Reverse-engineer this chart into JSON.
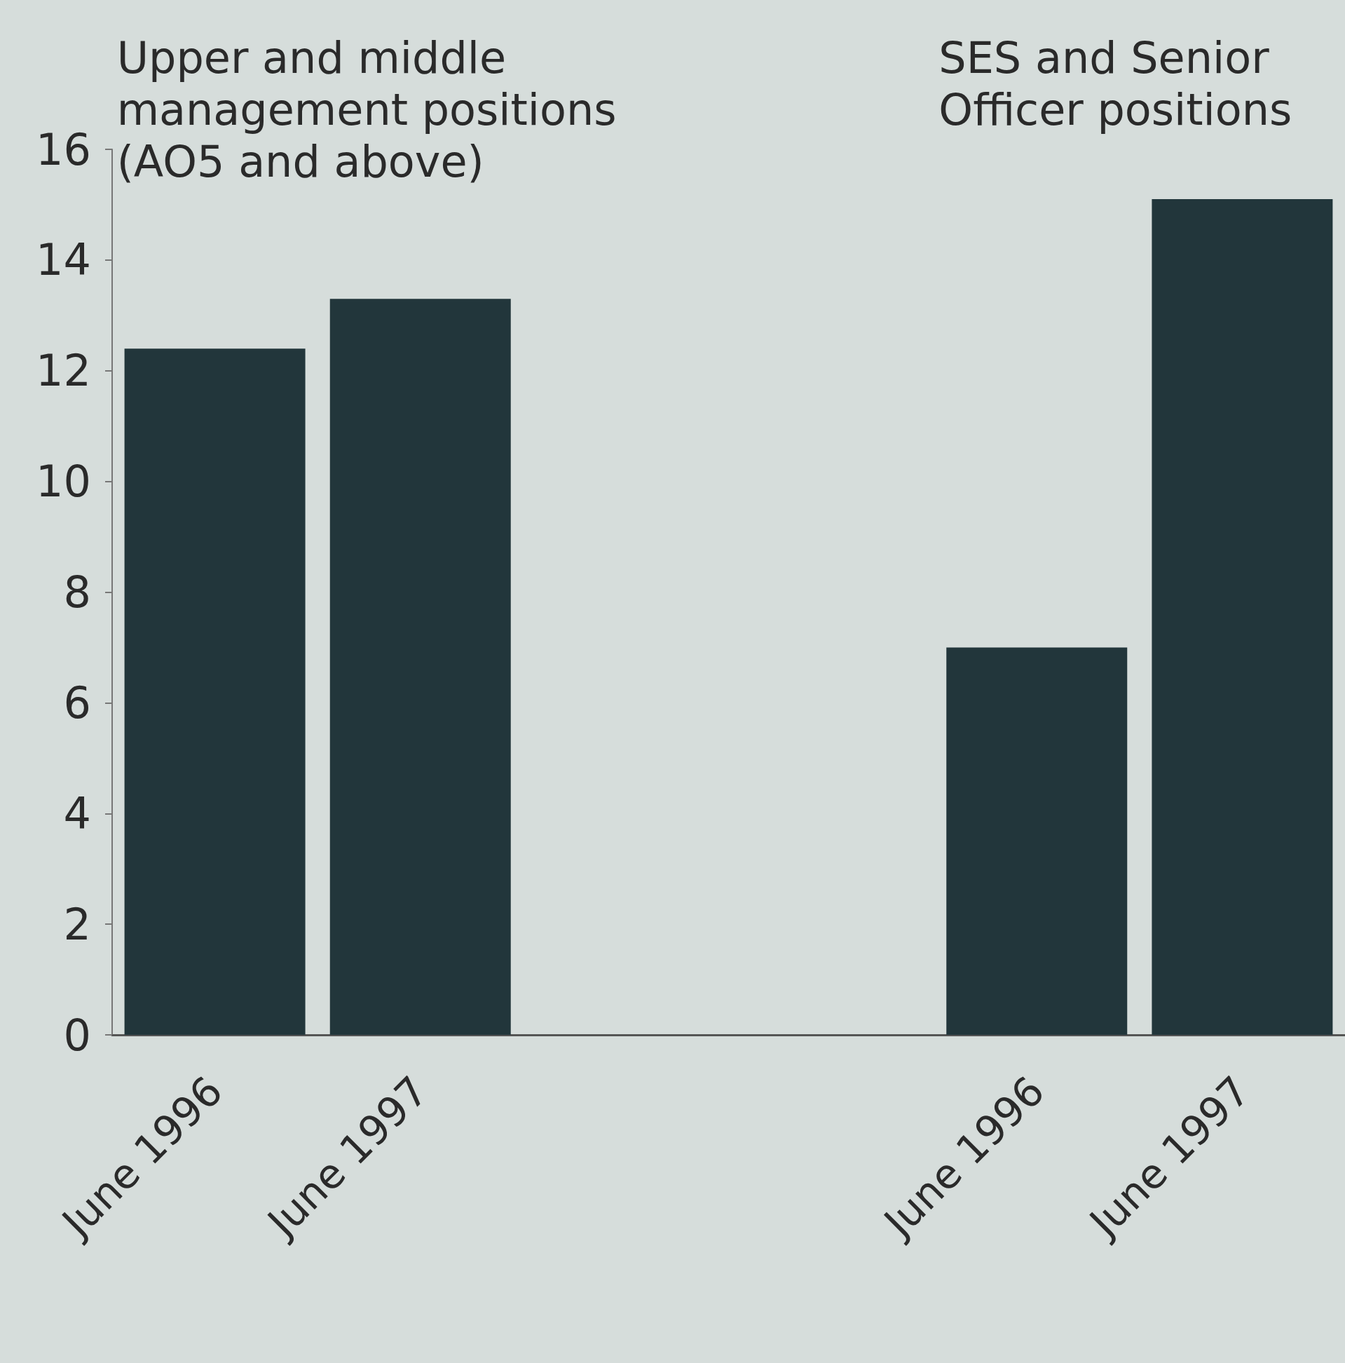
{
  "chart_data": {
    "type": "bar",
    "categories": [
      "June 1996",
      "June 1997",
      null,
      null,
      "June 1996",
      "June 1997"
    ],
    "values": [
      12.4,
      13.3,
      null,
      null,
      7.0,
      15.1
    ],
    "color": "#22363b",
    "ylim": [
      0,
      16
    ],
    "yticks": [
      0,
      2,
      4,
      6,
      8,
      10,
      12,
      14,
      16
    ],
    "grid": false,
    "annotations": [
      "Upper and middle\nmanagement positions\n(AO5 and above)",
      "SES and Senior\nOfficer positions"
    ]
  }
}
